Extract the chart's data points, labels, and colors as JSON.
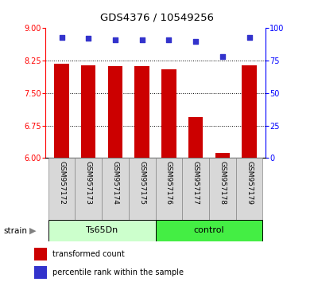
{
  "title": "GDS4376 / 10549256",
  "samples": [
    "GSM957172",
    "GSM957173",
    "GSM957174",
    "GSM957175",
    "GSM957176",
    "GSM957177",
    "GSM957178",
    "GSM957179"
  ],
  "bar_values": [
    8.18,
    8.15,
    8.12,
    8.13,
    8.05,
    6.95,
    6.12,
    8.15
  ],
  "percentile_values": [
    93,
    92,
    91,
    91,
    91,
    90,
    78,
    93
  ],
  "ylim_left": [
    6,
    9
  ],
  "ylim_right": [
    0,
    100
  ],
  "yticks_left": [
    6,
    6.75,
    7.5,
    8.25,
    9
  ],
  "yticks_right": [
    0,
    25,
    50,
    75,
    100
  ],
  "hlines": [
    6.75,
    7.5,
    8.25
  ],
  "bar_color": "#cc0000",
  "dot_color": "#3333cc",
  "group1_label": "Ts65Dn",
  "group2_label": "control",
  "group1_indices": [
    0,
    1,
    2,
    3
  ],
  "group2_indices": [
    4,
    5,
    6,
    7
  ],
  "group1_color": "#ccffcc",
  "group2_color": "#44ee44",
  "strain_label": "strain",
  "legend_bar_label": "transformed count",
  "legend_dot_label": "percentile rank within the sample",
  "bar_width": 0.55,
  "bg_color": "#d8d8d8",
  "tick_fontsize": 7,
  "label_fontsize": 6.5
}
